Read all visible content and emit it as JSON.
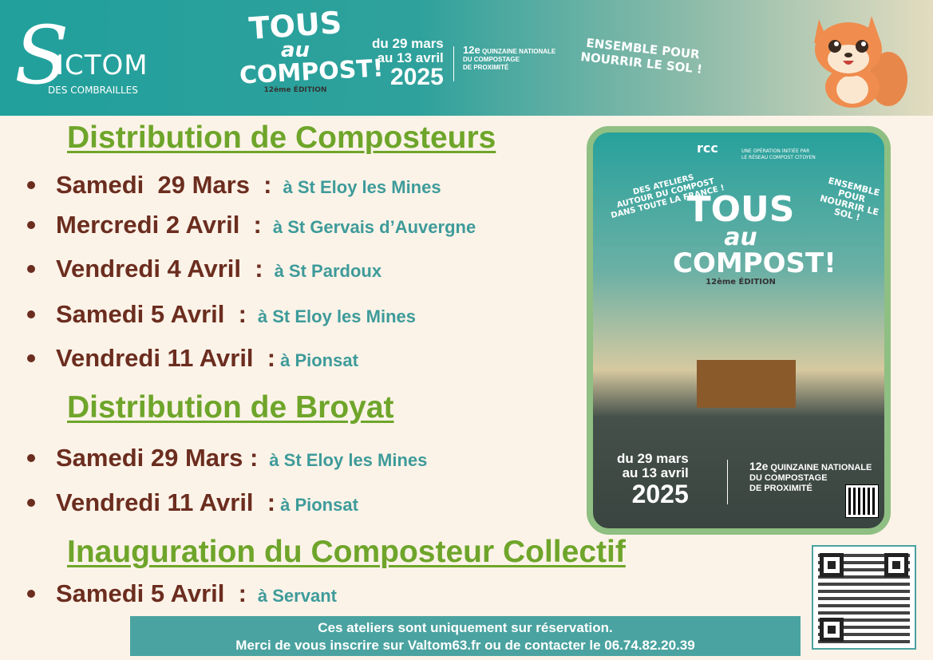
{
  "header": {
    "logo": {
      "letter": "S",
      "name": "ICTOM",
      "sub": "DES COMBRAILLES"
    },
    "campaign": {
      "line1": "TOUS",
      "line2": "au",
      "line3": "COMPOST!",
      "edition": "12ème ÉDITION"
    },
    "dates": {
      "from": "du 29 mars",
      "to": "au 13 avril",
      "year": "2025"
    },
    "quinzaine": {
      "num": "12e",
      "line1": "QUINZAINE NATIONALE",
      "line2": "DU COMPOSTAGE",
      "line3": "DE PROXIMITÉ"
    },
    "slogan": {
      "line1": "ENSEMBLE POUR",
      "line2": "NOURRIR LE SOL !"
    }
  },
  "sections": [
    {
      "title": "Distribution de Composteurs",
      "items": [
        {
          "day": "Samedi  29 Mars  :",
          "place": "à St Eloy les Mines"
        },
        {
          "day": "Mercredi 2 Avril  :",
          "place": "à St Gervais d’Auvergne"
        },
        {
          "day": "Vendredi 4 Avril  :",
          "place": "à St Pardoux"
        },
        {
          "day": "Samedi 5 Avril  :",
          "place": "à St Eloy les Mines"
        },
        {
          "day": "Vendredi 11 Avril  :",
          "place": "à Pionsat"
        }
      ]
    },
    {
      "title": "Distribution de Broyat ",
      "items": [
        {
          "day": "Samedi 29 Mars :",
          "place": "à St Eloy les Mines"
        },
        {
          "day": "Vendredi 11 Avril  :",
          "place": "à Pionsat"
        }
      ]
    },
    {
      "title": "Inauguration du Composteur Collectif",
      "items": [
        {
          "day": "Samedi 5 Avril  :",
          "place": "à Servant"
        }
      ]
    }
  ],
  "footer": {
    "line1": "Ces ateliers sont uniquement sur réservation.",
    "line2": "Merci de vous inscrire sur Valtom63.fr ou de contacter le 06.74.82.20.39"
  },
  "poster": {
    "rcc": "rcc",
    "operation": {
      "line1": "UNE OPÉRATION INITIÉE PAR",
      "line2": "LE RÉSEAU COMPOST CITOYEN"
    },
    "ateliers": {
      "line1": "DES ATELIERS",
      "line2": "AUTOUR DU COMPOST",
      "line3": "DANS TOUTE LA FRANCE !"
    },
    "slogan": {
      "line1": "ENSEMBLE POUR",
      "line2": "NOURRIR LE SOL !"
    },
    "title": {
      "line1": "TOUS",
      "line2": "au",
      "line3": "COMPOST!",
      "edition": "12ème ÉDITION"
    },
    "dates": {
      "from": "du 29 mars",
      "to": "au 13 avril",
      "year": "2025"
    },
    "quinzaine": {
      "num": "12e",
      "line1": "QUINZAINE NATIONALE",
      "line2": "DU COMPOSTAGE",
      "line3": "DE PROXIMITÉ"
    }
  },
  "colors": {
    "header_teal": "#21a09c",
    "heading_green": "#6ea52a",
    "day_brown": "#6b2d1f",
    "place_teal": "#3e9b9a",
    "footer_bg": "#4aa3a0",
    "poster_border": "#8fbf83"
  }
}
